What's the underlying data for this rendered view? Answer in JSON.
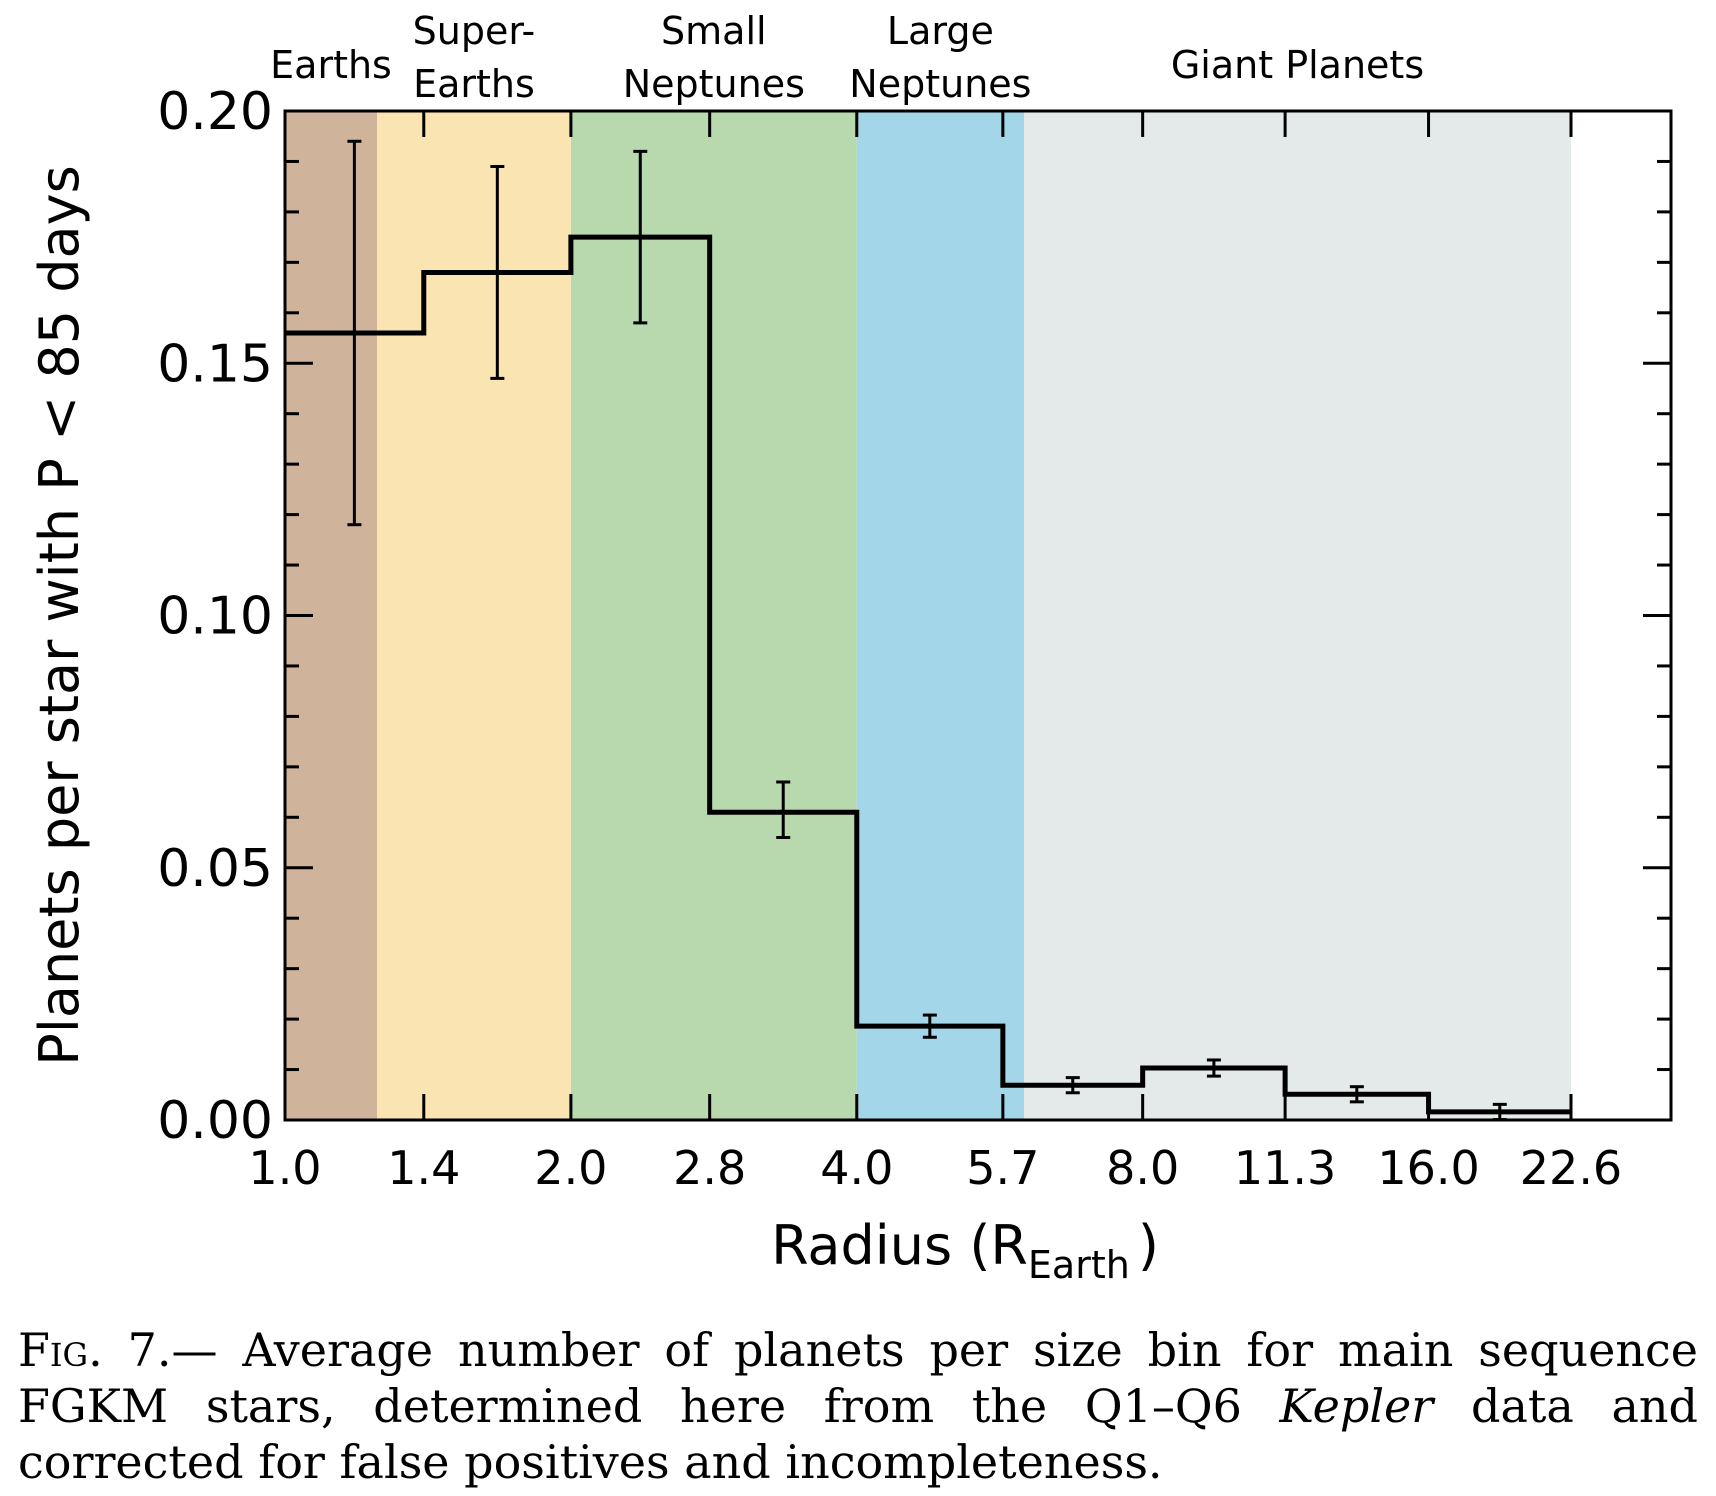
{
  "chart_data": {
    "type": "bar",
    "ylabel": "Planets per star with P < 85 days",
    "xlabel_main": "Radius (R",
    "xlabel_sub": "Earth",
    "xlabel_close": ")",
    "ylim": [
      0,
      0.2
    ],
    "x_scale": "log",
    "x_ticks": [
      "1.0",
      "1.4",
      "2.0",
      "2.8",
      "4.0",
      "5.7",
      "8.0",
      "11.3",
      "16.0",
      "22.6"
    ],
    "y_ticks": [
      "0.00",
      "0.05",
      "0.10",
      "0.15",
      "0.20"
    ],
    "bins": [
      {
        "lo": 1.0,
        "hi": 1.4,
        "value": 0.156,
        "err_lo": 0.038,
        "err_hi": 0.038
      },
      {
        "lo": 1.4,
        "hi": 2.0,
        "value": 0.168,
        "err_lo": 0.021,
        "err_hi": 0.021
      },
      {
        "lo": 2.0,
        "hi": 2.8,
        "value": 0.175,
        "err_lo": 0.017,
        "err_hi": 0.017
      },
      {
        "lo": 2.8,
        "hi": 4.0,
        "value": 0.061,
        "err_lo": 0.005,
        "err_hi": 0.006
      },
      {
        "lo": 4.0,
        "hi": 5.7,
        "value": 0.0186,
        "err_lo": 0.0022,
        "err_hi": 0.0022
      },
      {
        "lo": 5.7,
        "hi": 8.0,
        "value": 0.0069,
        "err_lo": 0.0015,
        "err_hi": 0.0015
      },
      {
        "lo": 8.0,
        "hi": 11.3,
        "value": 0.0103,
        "err_lo": 0.0016,
        "err_hi": 0.0016
      },
      {
        "lo": 11.3,
        "hi": 16.0,
        "value": 0.0051,
        "err_lo": 0.0015,
        "err_hi": 0.0015
      },
      {
        "lo": 16.0,
        "hi": 22.6,
        "value": 0.0016,
        "err_lo": 0.0015,
        "err_hi": 0.0015
      }
    ],
    "regions": [
      {
        "label_lines": [
          "Earths"
        ],
        "lo": 1.0,
        "hi": 1.25,
        "color": "#cfb49b"
      },
      {
        "label_lines": [
          "Super-",
          "Earths"
        ],
        "lo": 1.25,
        "hi": 2.0,
        "color": "#fae4b1"
      },
      {
        "label_lines": [
          "Small",
          "Neptunes"
        ],
        "lo": 2.0,
        "hi": 4.0,
        "color": "#b7d9ad"
      },
      {
        "label_lines": [
          "Large",
          "Neptunes"
        ],
        "lo": 4.0,
        "hi": 6.0,
        "color": "#a2d6e8"
      },
      {
        "label_lines": [
          "Giant Planets"
        ],
        "lo": 6.0,
        "hi": 22.6,
        "color": "#e4eaea"
      }
    ],
    "grid": false
  },
  "caption": {
    "fig_label": "Fig. 7.",
    "text_before": "— Average number of planets per size bin for main sequence FGKM stars, determined here from the Q1–Q6 ",
    "emph": "Kepler",
    "text_after": " data and corrected for false positives and incompleteness."
  }
}
